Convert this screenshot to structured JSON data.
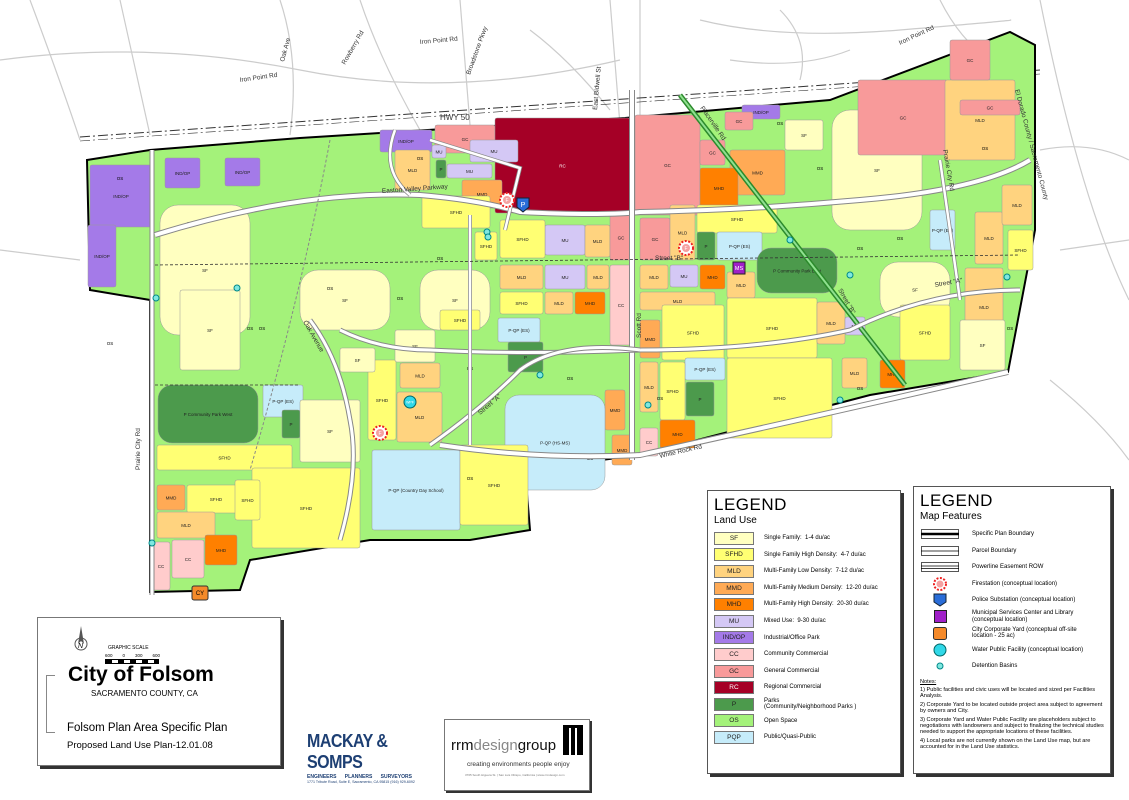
{
  "map": {
    "roads": {
      "hwy50": "HWY 50",
      "iron_point_1": "Iron Point Rd",
      "iron_point_2": "Iron Point Rd",
      "iron_point_3": "Iron Point Rd",
      "oak_ave": "Oak Ave",
      "rowberry": "Rowberry Rd",
      "broadstone": "Broadstone Pkwy",
      "east_bidwell": "East Bidwell St",
      "easton_valley": "Easton Valley Parkway",
      "placerville": "Placerville Rd",
      "prairie_city": "Prairie City Rd",
      "white_rock": "White Rock Rd",
      "scott": "Scott Rd",
      "oak_avenue": "Oak Avenue",
      "street_a": "Street \"A\"",
      "street_a2": "Street \"A\"",
      "street_b": "Street \"B\"",
      "street_b2": "Street \"B\"",
      "county_line": "El Dorado County / Sacramento County",
      "prairie_city_2": "Prairie City Rd"
    },
    "parcels": [
      "IND/OP",
      "IND/OP",
      "IND/OP",
      "IND/OP",
      "IND/OP",
      "GC",
      "RC",
      "MU",
      "MU",
      "MMD",
      "MLD",
      "MU",
      "P",
      "SF",
      "SFHD",
      "GC",
      "GC",
      "MMD",
      "MHD",
      "GC",
      "MLD",
      "SFHD",
      "P",
      "P-QP (ES)",
      "MU",
      "MLD",
      "GC",
      "SFHD",
      "SFHD",
      "MLD",
      "MU",
      "MLD",
      "CC",
      "SFHD",
      "MLD",
      "MHD",
      "P-QP (ES)",
      "P",
      "MLD",
      "MU",
      "MHD",
      "MLD",
      "P Community Park East",
      "MLD",
      "MMD",
      "SFHD",
      "SFHD",
      "MLD",
      "MU",
      "P-QP (ES)",
      "MLD",
      "SFHD",
      "P",
      "SFHD",
      "MMD",
      "CC",
      "MHD",
      "MMD",
      "P-QP (HS-MS)",
      "P Community Park West",
      "P-QP (ES)",
      "P",
      "SF",
      "SFHD",
      "MLD",
      "SF",
      "MLD",
      "SF",
      "SFHD",
      "P-QP (Country Day School)",
      "SFHD",
      "SFHD",
      "MMD",
      "SFHD",
      "MLD",
      "CC",
      "MHD",
      "CC",
      "SF",
      "GC",
      "MLD",
      "GC",
      "MLD",
      "SFHD",
      "P-QP (ES)",
      "MLD",
      "SF",
      "SFHD",
      "MLD",
      "MHD",
      "SF",
      "IND/OP",
      "SF",
      "GC",
      "SF",
      "SF",
      "SF",
      "SFHD",
      "SFHD",
      "MLD",
      "GC"
    ],
    "os_labels": [
      "OS",
      "OS",
      "OS",
      "OS",
      "OS",
      "OS",
      "OS",
      "OS",
      "OS",
      "OS",
      "OS",
      "OS",
      "OS",
      "OS",
      "OS",
      "OS",
      "OS",
      "OS",
      "OS",
      "OS",
      "OS",
      "OS"
    ],
    "symbols": {
      "firestation": "F",
      "police": "P",
      "municipal": "MS",
      "corp_yard": "CY",
      "water": "WPF"
    }
  },
  "legend_land_use": {
    "title": "LEGEND",
    "subtitle": "Land Use",
    "items": [
      {
        "code": "SF",
        "label": "Single Family:  1-4 du/ac",
        "color": "#ffffc0"
      },
      {
        "code": "SFHD",
        "label": "Single Family High Density:  4-7 du/ac",
        "color": "#ffff73"
      },
      {
        "code": "MLD",
        "label": "Multi-Family Low Density:  7-12 du/ac",
        "color": "#ffd37f"
      },
      {
        "code": "MMD",
        "label": "Multi-Family Medium Density:  12-20 du/ac",
        "color": "#ffaa55"
      },
      {
        "code": "MHD",
        "label": "Multi-Family High Density:  20-30 du/ac",
        "color": "#ff8000"
      },
      {
        "code": "MU",
        "label": "Mixed Use:  9-30 du/ac",
        "color": "#d4c8f5"
      },
      {
        "code": "IND/OP",
        "label": "Industrial/Office Park",
        "color": "#a47ae8"
      },
      {
        "code": "CC",
        "label": "Community Commercial",
        "color": "#ffcccc"
      },
      {
        "code": "GC",
        "label": "General Commercial",
        "color": "#f89a9a"
      },
      {
        "code": "RC",
        "label": "Regional Commercial",
        "color": "#a50026"
      },
      {
        "code": "P",
        "label": "Parks\n(Community/Neighborhood Parks )",
        "color": "#4c9a4c"
      },
      {
        "code": "OS",
        "label": "Open Space",
        "color": "#a4f27a"
      },
      {
        "code": "PQP",
        "label": "Public/Quasi-Public",
        "color": "#c6ecfa"
      }
    ]
  },
  "legend_features": {
    "title": "LEGEND",
    "subtitle": "Map Features",
    "items": [
      {
        "icon": "specific-plan-boundary",
        "label": "Specific Plan Boundary"
      },
      {
        "icon": "parcel-boundary",
        "label": "Parcel Boundary"
      },
      {
        "icon": "powerline-easement",
        "label": "Powerline Easement ROW"
      },
      {
        "icon": "firestation",
        "label": "Firestation (conceptual location)"
      },
      {
        "icon": "police",
        "label": "Police Substation (conceptual location)"
      },
      {
        "icon": "municipal",
        "label": "Municipal Services Center and Library\n(conceptual location)"
      },
      {
        "icon": "corp-yard",
        "label": "City Corporate Yard (conceptual off-site\nlocation - 25 ac)"
      },
      {
        "icon": "water",
        "label": "Water Public Facility (conceptual location)"
      },
      {
        "icon": "detention",
        "label": "Detention Basins"
      }
    ],
    "notes_title": "Notes:",
    "notes": [
      "1) Public facilities and civic uses will be located and sized per Facilities Analysis.",
      "2) Corporate Yard to be located outside project area subject to agreement by owners and City.",
      "3) Corporate Yard and Water Public Facility are placeholders subject to negotiations with landowners and subject to finalizing the technical studies needed to support the appropriate locations of these facilities.",
      "4) Local parks are not currently shown on the Land Use map, but are accounted for in the Land Use statistics."
    ]
  },
  "title_block": {
    "scale_title": "GRAPHIC SCALE",
    "scale_ticks": [
      "600",
      "0",
      "300",
      "600"
    ],
    "north": "N",
    "city": "City of Folsom",
    "county": "SACRAMENTO COUNTY, CA",
    "plan": "Folsom Plan Area Specific Plan",
    "proposed": "Proposed Land Use Plan-12.01.08"
  },
  "logos": {
    "mackay": {
      "name": "MACKAY & SOMPS",
      "tagline": "ENGINEERS      PLANNERS      SURVEYORS",
      "address": "1771 Tribute Road, Suite E, Sacramento, CA 95815  (916) 929-6092"
    },
    "rrm": {
      "name_light": "rrm",
      "name_mid": "design",
      "name_end": "group",
      "tagline": "creating environments people enjoy",
      "address": "3765 South Higuera St. | San Luis Obispo, California | www.rrmdesign.com"
    }
  }
}
